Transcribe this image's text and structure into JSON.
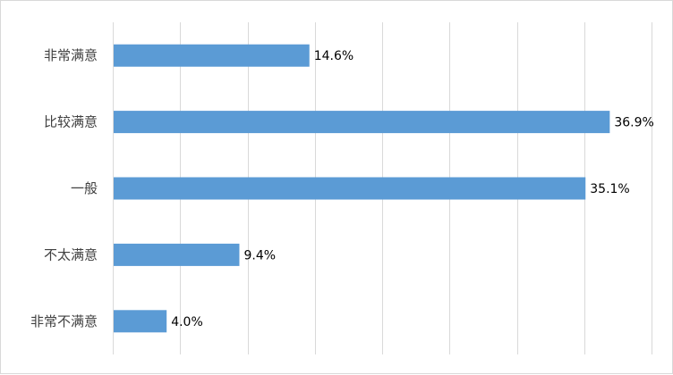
{
  "chart_data": {
    "type": "bar",
    "orientation": "horizontal",
    "categories": [
      "非常满意",
      "比较满意",
      "一般",
      "不太满意",
      "非常不满意"
    ],
    "values": [
      14.6,
      36.9,
      35.1,
      9.4,
      4.0
    ],
    "value_labels": [
      "14.6%",
      "36.9%",
      "35.1%",
      "9.4%",
      "4.0%"
    ],
    "xlim": [
      0,
      40
    ],
    "x_gridlines": true,
    "x_tick_labels_visible": false,
    "title": "",
    "xlabel": "",
    "ylabel": "",
    "bar_color": "#5b9bd5",
    "grid_color": "#d9d9d9"
  }
}
